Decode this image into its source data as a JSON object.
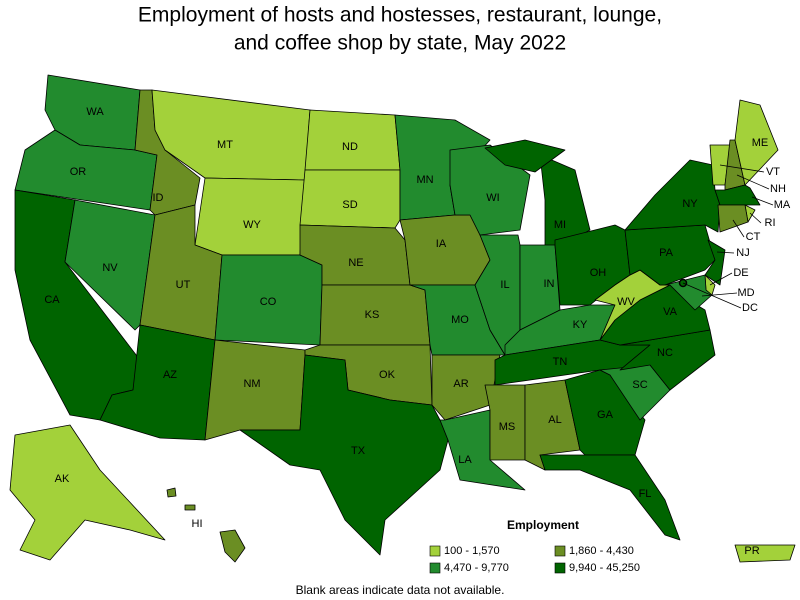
{
  "title_lines": [
    "Employment of hosts and hostesses, restaurant, lounge,",
    "and coffee shop by state, May 2022"
  ],
  "states": [
    {
      "label": "WA",
      "class": 2
    },
    {
      "label": "OR",
      "class": 2
    },
    {
      "label": "CA",
      "class": 3
    },
    {
      "label": "NV",
      "class": 2
    },
    {
      "label": "ID",
      "class": 1
    },
    {
      "label": "MT",
      "class": 0
    },
    {
      "label": "WY",
      "class": 0
    },
    {
      "label": "UT",
      "class": 1
    },
    {
      "label": "AZ",
      "class": 3
    },
    {
      "label": "CO",
      "class": 2
    },
    {
      "label": "NM",
      "class": 1
    },
    {
      "label": "ND",
      "class": 0
    },
    {
      "label": "SD",
      "class": 0
    },
    {
      "label": "NE",
      "class": 1
    },
    {
      "label": "KS",
      "class": 1
    },
    {
      "label": "OK",
      "class": 1
    },
    {
      "label": "TX",
      "class": 3
    },
    {
      "label": "MN",
      "class": 2
    },
    {
      "label": "IA",
      "class": 1
    },
    {
      "label": "MO",
      "class": 2
    },
    {
      "label": "AR",
      "class": 1
    },
    {
      "label": "LA",
      "class": 2
    },
    {
      "label": "WI",
      "class": 2
    },
    {
      "label": "IL",
      "class": 2
    },
    {
      "label": "MI",
      "class": 3
    },
    {
      "label": "IN",
      "class": 2
    },
    {
      "label": "OH",
      "class": 3
    },
    {
      "label": "KY",
      "class": 2
    },
    {
      "label": "TN",
      "class": 3
    },
    {
      "label": "MS",
      "class": 1
    },
    {
      "label": "AL",
      "class": 1
    },
    {
      "label": "GA",
      "class": 3
    },
    {
      "label": "FL",
      "class": 3
    },
    {
      "label": "SC",
      "class": 2
    },
    {
      "label": "NC",
      "class": 3
    },
    {
      "label": "VA",
      "class": 3
    },
    {
      "label": "WV",
      "class": 0
    },
    {
      "label": "PA",
      "class": 3
    },
    {
      "label": "NY",
      "class": 3
    },
    {
      "label": "VT",
      "class": 0
    },
    {
      "label": "NH",
      "class": 1
    },
    {
      "label": "ME",
      "class": 0
    },
    {
      "label": "MA",
      "class": 3
    },
    {
      "label": "RI",
      "class": 0
    },
    {
      "label": "CT",
      "class": 1
    },
    {
      "label": "NJ",
      "class": 3
    },
    {
      "label": "DE",
      "class": 0
    },
    {
      "label": "MD",
      "class": 2
    },
    {
      "label": "DC",
      "class": 3
    },
    {
      "label": "AK",
      "class": 0
    },
    {
      "label": "HI",
      "class": 1
    },
    {
      "label": "PR",
      "class": 0
    }
  ],
  "legend": {
    "title": "Employment",
    "classes": [
      {
        "label": "100 - 1,570",
        "color": "#a3d13a"
      },
      {
        "label": "1,860 - 4,430",
        "color": "#6b8e23"
      },
      {
        "label": "4,470 - 9,770",
        "color": "#228b2e"
      },
      {
        "label": "9,940 - 45,250",
        "color": "#006400"
      }
    ]
  },
  "footnote": "Blank areas indicate data not available."
}
